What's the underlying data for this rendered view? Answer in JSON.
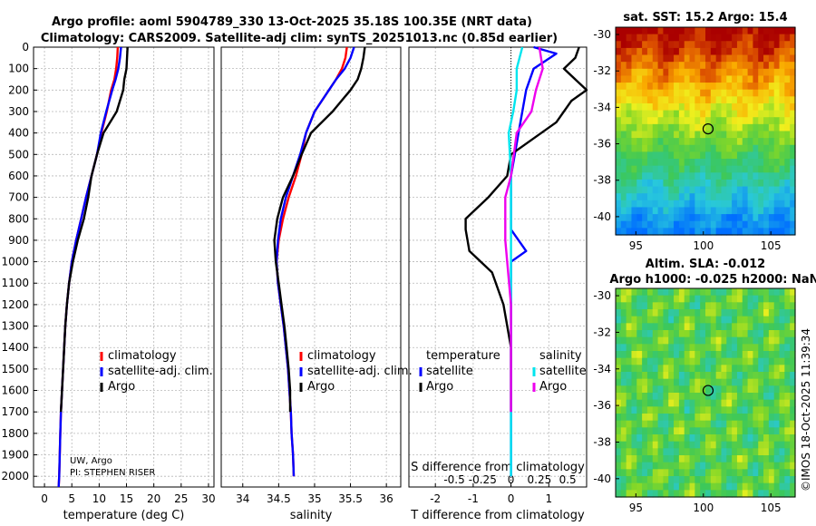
{
  "title_line1": "Argo profile: aoml 5904789_330 13-Oct-2025 35.18S 100.35E (NRT data)",
  "title_line2": "Climatology: CARS2009. Satellite-adj clim: synTS_20251013.nc (0.85d earlier)",
  "credit": "©IMOS 18-Oct-2025 11:39:34",
  "pi_line1": "UW, Argo",
  "pi_line2": "PI: STEPHEN RISER",
  "colors": {
    "climatology": "#ff0000",
    "satellite": "#0000ff",
    "argo": "#000000",
    "satellite_s": "#00e5ee",
    "argo_s": "#ee00ee"
  },
  "legend_profiles": [
    {
      "label": "climatology",
      "color": "#ff0000"
    },
    {
      "label": "satellite-adj. clim.",
      "color": "#0000ff"
    },
    {
      "label": "Argo",
      "color": "#000000"
    }
  ],
  "legend_diff": {
    "temperature_title": "temperature",
    "salinity_title": "salinity",
    "items_t": [
      {
        "label": "satellite",
        "color": "#0000ff"
      },
      {
        "label": "Argo",
        "color": "#000000"
      }
    ],
    "items_s": [
      {
        "label": "satellite",
        "color": "#00e5ee"
      },
      {
        "label": "Argo",
        "color": "#ee00ee"
      }
    ]
  },
  "map_sst": {
    "title": "sat. SST: 15.2 Argo: 15.4",
    "x_ticks": [
      95,
      100,
      105
    ],
    "y_ticks": [
      -30,
      -32,
      -34,
      -36,
      -38,
      -40
    ],
    "xlim": [
      93.5,
      106.8
    ],
    "ylim": [
      -41,
      -29.6
    ],
    "marker": [
      100.35,
      -35.18
    ]
  },
  "map_sla": {
    "title_line1": "Altim. SLA: -0.012",
    "title_line2": "Argo h1000: -0.025 h2000: NaN",
    "x_ticks": [
      95,
      100,
      105
    ],
    "y_ticks": [
      -30,
      -32,
      -34,
      -36,
      -38,
      -40
    ],
    "xlim": [
      93.5,
      106.8
    ],
    "ylim": [
      -41,
      -29.6
    ],
    "marker": [
      100.35,
      -35.18
    ]
  },
  "chart_data": [
    {
      "type": "line",
      "name": "temperature",
      "xlabel": "temperature (deg C)",
      "ylabel": "",
      "xlim": [
        -2,
        31
      ],
      "ylim": [
        2050,
        0
      ],
      "x_ticks": [
        0,
        5,
        10,
        15,
        20,
        25,
        30
      ],
      "y_ticks": [
        0,
        100,
        200,
        300,
        400,
        500,
        600,
        700,
        800,
        900,
        1000,
        1100,
        1200,
        1300,
        1400,
        1500,
        1600,
        1700,
        1800,
        1900,
        2000
      ],
      "series": [
        {
          "name": "climatology",
          "x": [
            13.4,
            13.3,
            13.1,
            12.8,
            12.2,
            11.4,
            10.4,
            9.6,
            8.6,
            7.6,
            6.7,
            5.8,
            5.0,
            4.5,
            4.1,
            3.8,
            3.6,
            3.4,
            3.2,
            3.0,
            2.9,
            2.8,
            2.7,
            2.6
          ],
          "depth": [
            0,
            50,
            100,
            150,
            200,
            300,
            400,
            500,
            600,
            700,
            800,
            900,
            1000,
            1100,
            1200,
            1300,
            1400,
            1500,
            1600,
            1700,
            1800,
            1900,
            2000,
            2050
          ]
        },
        {
          "name": "satellite-adj. clim.",
          "x": [
            14.0,
            13.8,
            13.5,
            13.0,
            12.4,
            11.3,
            10.3,
            9.6,
            8.6,
            7.6,
            6.7,
            5.8,
            5.0,
            4.5,
            4.1,
            3.8,
            3.6,
            3.4,
            3.2,
            3.0,
            2.9,
            2.8,
            2.7,
            2.6
          ],
          "depth": [
            0,
            50,
            100,
            150,
            200,
            300,
            400,
            500,
            600,
            700,
            800,
            900,
            1000,
            1100,
            1200,
            1300,
            1400,
            1500,
            1600,
            1700,
            1800,
            1900,
            2000,
            2050
          ]
        },
        {
          "name": "Argo",
          "x": [
            15.2,
            15.1,
            15.0,
            14.6,
            14.4,
            13.2,
            10.8,
            9.6,
            8.6,
            8.0,
            7.2,
            6.1,
            5.2,
            4.5,
            4.1,
            3.8,
            3.6,
            3.4,
            3.2,
            3.0
          ],
          "depth": [
            0,
            50,
            100,
            150,
            200,
            300,
            400,
            500,
            600,
            700,
            800,
            900,
            1000,
            1100,
            1200,
            1300,
            1400,
            1500,
            1600,
            1700
          ]
        }
      ]
    },
    {
      "type": "line",
      "name": "salinity",
      "xlabel": "salinity",
      "ylabel": "",
      "xlim": [
        33.7,
        36.2
      ],
      "ylim": [
        2050,
        0
      ],
      "x_ticks": [
        34,
        34.5,
        35,
        35.5,
        36
      ],
      "series": [
        {
          "name": "climatology",
          "x": [
            35.45,
            35.43,
            35.38,
            35.3,
            35.2,
            35.0,
            34.88,
            34.82,
            34.74,
            34.64,
            34.56,
            34.5,
            34.47,
            34.49,
            34.53,
            34.57,
            34.6,
            34.63,
            34.65,
            34.67,
            34.68,
            34.7,
            34.71
          ],
          "depth": [
            0,
            50,
            100,
            150,
            200,
            300,
            400,
            500,
            600,
            700,
            800,
            900,
            1000,
            1100,
            1200,
            1300,
            1400,
            1500,
            1600,
            1700,
            1800,
            1900,
            2000
          ]
        },
        {
          "name": "satellite-adj. clim.",
          "x": [
            35.55,
            35.5,
            35.42,
            35.3,
            35.2,
            35.0,
            34.88,
            34.8,
            34.7,
            34.6,
            34.53,
            34.49,
            34.47,
            34.49,
            34.53,
            34.57,
            34.6,
            34.63,
            34.65,
            34.67,
            34.68,
            34.7,
            34.71
          ],
          "depth": [
            0,
            50,
            100,
            150,
            200,
            300,
            400,
            500,
            600,
            700,
            800,
            900,
            1000,
            1100,
            1200,
            1300,
            1400,
            1500,
            1600,
            1700,
            1800,
            1900,
            2000
          ]
        },
        {
          "name": "Argo",
          "x": [
            35.7,
            35.68,
            35.65,
            35.6,
            35.5,
            35.25,
            34.95,
            34.82,
            34.7,
            34.56,
            34.48,
            34.44,
            34.46,
            34.5,
            34.54,
            34.58,
            34.61,
            34.64,
            34.66,
            34.66
          ],
          "depth": [
            0,
            50,
            100,
            150,
            200,
            300,
            400,
            500,
            600,
            700,
            800,
            900,
            1000,
            1100,
            1200,
            1300,
            1400,
            1500,
            1600,
            1700
          ]
        }
      ]
    },
    {
      "type": "line",
      "name": "difference",
      "xlabel": "T difference from climatology",
      "xlabel_top": "S difference from climatology",
      "xlim": [
        -2.7,
        2.0
      ],
      "ylim": [
        2050,
        0
      ],
      "x_ticks": [
        -2,
        -1,
        0,
        1
      ],
      "x_ticks_labels": [
        "-2",
        "-1",
        "0",
        "1"
      ],
      "s_ticks": [
        -0.5,
        -0.25,
        0,
        0.25,
        0.5
      ],
      "s_ticks_labels": [
        "-0.5",
        "-0.25",
        "0",
        "0.25",
        "0.5"
      ],
      "series": [
        {
          "name": "T satellite",
          "x": [
            0.6,
            1.2,
            0.6,
            0.4,
            0.3,
            0.2,
            0.1,
            0.0,
            0.0,
            0.0,
            0.0,
            0.4,
            0.0,
            0.0,
            0.0,
            0.0,
            0.0,
            0.0
          ],
          "depth": [
            0,
            30,
            100,
            200,
            300,
            400,
            500,
            600,
            700,
            800,
            850,
            950,
            1000,
            1200,
            1400,
            1600,
            1800,
            2000
          ]
        },
        {
          "name": "T Argo",
          "x": [
            1.8,
            1.7,
            1.4,
            2.0,
            1.6,
            1.2,
            0.0,
            -0.1,
            -0.6,
            -1.2,
            -1.2,
            -1.1,
            -0.5,
            -0.2,
            0.0,
            0.0,
            0.0
          ],
          "depth": [
            0,
            50,
            100,
            200,
            250,
            350,
            500,
            600,
            700,
            800,
            850,
            950,
            1050,
            1200,
            1400,
            1600,
            1700
          ]
        },
        {
          "name": "S satellite",
          "x": [
            0.1,
            0.05,
            0.05,
            0.02,
            -0.02,
            0.0,
            0.0,
            0.0,
            0.0,
            0.0,
            0.0
          ],
          "depth": [
            0,
            100,
            200,
            300,
            400,
            600,
            800,
            1000,
            1400,
            1800,
            2000
          ]
        },
        {
          "name": "S Argo",
          "x": [
            0.25,
            0.28,
            0.22,
            0.18,
            0.05,
            0.0,
            -0.05,
            -0.05,
            0.0,
            0.0,
            0.0
          ],
          "depth": [
            0,
            100,
            200,
            300,
            400,
            600,
            700,
            900,
            1200,
            1500,
            1700
          ]
        }
      ]
    }
  ]
}
